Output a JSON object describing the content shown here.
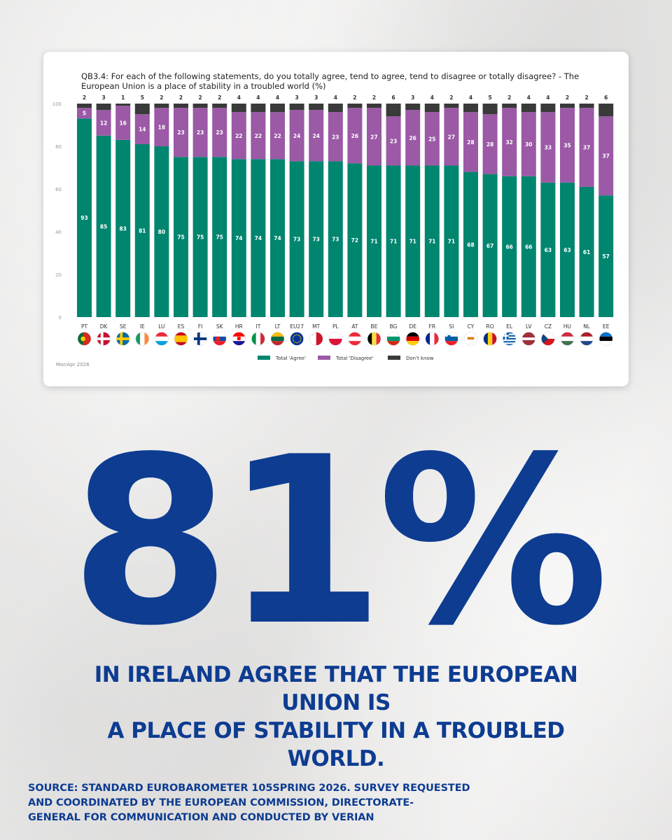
{
  "card": {
    "footnote": "Mar/Apr 2026"
  },
  "colors": {
    "agree": "#00856f",
    "disagree": "#9b59a6",
    "dont_know": "#3a3a3a",
    "headline": "#0d3c91"
  },
  "chart_data": {
    "type": "bar",
    "stacked": true,
    "title": "QB3.4: For each of the following statements, do you totally agree, tend to agree, tend to disagree or totally disagree? - The European Union is a place of stability in a troubled world (%)",
    "categories": [
      "PT",
      "DK",
      "SE",
      "IE",
      "LU",
      "ES",
      "FI",
      "SK",
      "HR",
      "IT",
      "LT",
      "EU27",
      "MT",
      "PL",
      "AT",
      "BE",
      "BG",
      "DE",
      "FR",
      "SI",
      "CY",
      "RO",
      "EL",
      "LV",
      "CZ",
      "HU",
      "NL",
      "EE"
    ],
    "series": [
      {
        "name": "Total 'Agree'",
        "color": "#00856f",
        "values": [
          93,
          85,
          83,
          81,
          80,
          75,
          75,
          75,
          74,
          74,
          74,
          73,
          73,
          73,
          72,
          71,
          71,
          71,
          71,
          71,
          68,
          67,
          66,
          66,
          63,
          63,
          61,
          57
        ]
      },
      {
        "name": "Total 'Disagree'",
        "color": "#9b59a6",
        "values": [
          5,
          12,
          16,
          14,
          18,
          23,
          23,
          23,
          22,
          22,
          22,
          24,
          24,
          23,
          26,
          27,
          23,
          26,
          25,
          27,
          28,
          28,
          32,
          30,
          33,
          35,
          37,
          37
        ]
      },
      {
        "name": "Don't know",
        "color": "#3a3a3a",
        "values": [
          2,
          3,
          1,
          5,
          2,
          2,
          2,
          2,
          4,
          4,
          4,
          3,
          3,
          4,
          2,
          2,
          6,
          3,
          4,
          2,
          4,
          5,
          2,
          4,
          4,
          2,
          2,
          6
        ]
      }
    ],
    "y_ticks": [
      0,
      20,
      40,
      60,
      80,
      100
    ],
    "ylim": [
      0,
      100
    ],
    "legend_position": "bottom",
    "flag_icons": [
      "portugal-flag",
      "denmark-flag",
      "sweden-flag",
      "ireland-flag",
      "luxembourg-flag",
      "spain-flag",
      "finland-flag",
      "slovakia-flag",
      "croatia-flag",
      "italy-flag",
      "lithuania-flag",
      "eu-flag",
      "malta-flag",
      "poland-flag",
      "austria-flag",
      "belgium-flag",
      "bulgaria-flag",
      "germany-flag",
      "france-flag",
      "slovenia-flag",
      "cyprus-flag",
      "romania-flag",
      "greece-flag",
      "latvia-flag",
      "czechia-flag",
      "hungary-flag",
      "netherlands-flag",
      "estonia-flag"
    ]
  },
  "headline": {
    "number": "81%",
    "line1": "IN IRELAND AGREE THAT THE EUROPEAN UNION IS",
    "line2": "A PLACE OF STABILITY IN A TROUBLED WORLD."
  },
  "source": {
    "line1": "SOURCE: STANDARD EUROBAROMETER 105SPRING 2026. SURVEY REQUESTED",
    "line2": "AND COORDINATED BY THE EUROPEAN COMMISSION, DIRECTORATE-",
    "line3": "GENERAL FOR COMMUNICATION AND CONDUCTED BY VERIAN"
  }
}
